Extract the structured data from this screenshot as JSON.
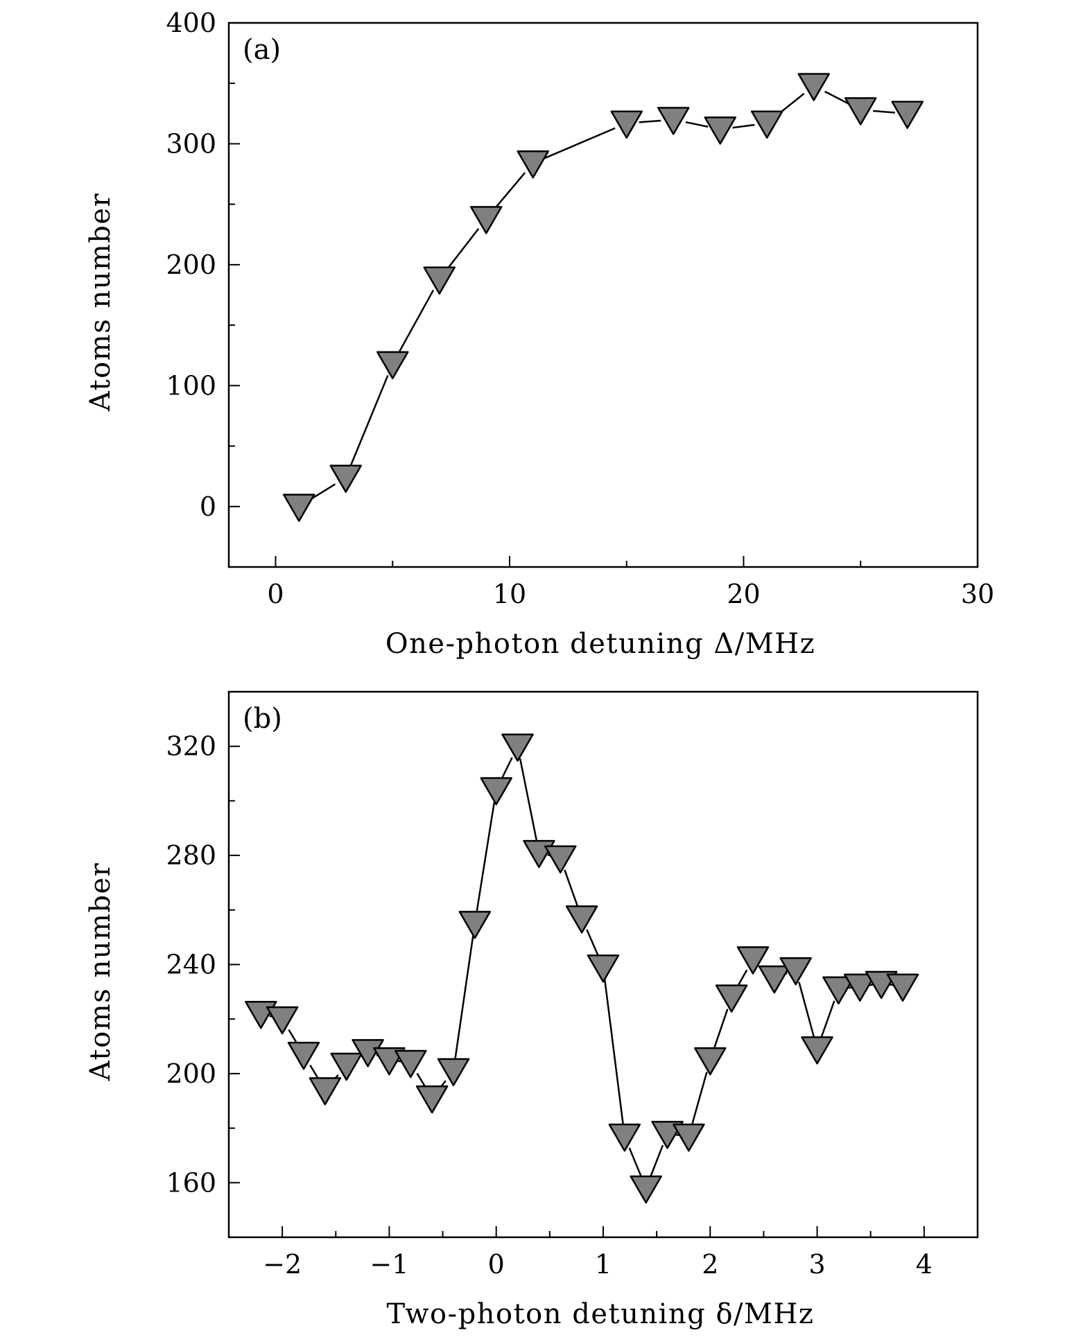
{
  "chart_data": [
    {
      "type": "line",
      "panel_label": "(a)",
      "marker": "down-triangle",
      "marker_color": "#808080",
      "xlabel": "One-photon detuning Δ/MHz",
      "ylabel": "Atoms number",
      "xlim": [
        -2,
        30
      ],
      "ylim": [
        -50,
        400
      ],
      "xticks": [
        0,
        10,
        20,
        30
      ],
      "xtick_labels": [
        "0",
        "10",
        "20",
        "30"
      ],
      "yticks": [
        0,
        100,
        200,
        300,
        400
      ],
      "ytick_labels": [
        "0",
        "100",
        "200",
        "300",
        "400"
      ],
      "series": [
        {
          "name": "atoms",
          "x": [
            1,
            3,
            5,
            7,
            9,
            11,
            15,
            17,
            19,
            21,
            23,
            25,
            27
          ],
          "y": [
            0,
            24,
            118,
            188,
            238,
            284,
            317,
            320,
            312,
            317,
            348,
            328,
            325
          ]
        }
      ]
    },
    {
      "type": "line",
      "panel_label": "(b)",
      "marker": "down-triangle",
      "marker_color": "#808080",
      "xlabel": "Two-photon detuning δ/MHz",
      "ylabel": "Atoms number",
      "xlim": [
        -2.5,
        4.5
      ],
      "ylim": [
        140,
        340
      ],
      "xticks": [
        -2,
        -1,
        0,
        1,
        2,
        3,
        4
      ],
      "xtick_labels": [
        "−2",
        "−1",
        "0",
        "1",
        "2",
        "3",
        "4"
      ],
      "yticks": [
        160,
        200,
        240,
        280,
        320
      ],
      "ytick_labels": [
        "160",
        "200",
        "240",
        "280",
        "320"
      ],
      "series": [
        {
          "name": "atoms",
          "x": [
            -2.2,
            -2.0,
            -1.8,
            -1.6,
            -1.4,
            -1.2,
            -1.0,
            -0.8,
            -0.6,
            -0.4,
            -0.2,
            0.0,
            0.2,
            0.4,
            0.6,
            0.8,
            1.0,
            1.2,
            1.4,
            1.6,
            1.8,
            2.0,
            2.2,
            2.4,
            2.6,
            2.8,
            3.0,
            3.2,
            3.4,
            3.6,
            3.8
          ],
          "y": [
            222,
            220,
            207,
            194,
            203,
            208,
            205,
            204,
            191,
            201,
            255,
            304,
            320,
            281,
            279,
            257,
            239,
            177,
            158,
            178,
            177,
            205,
            228,
            242,
            235,
            238,
            209,
            231,
            232,
            233,
            232
          ]
        }
      ]
    }
  ]
}
